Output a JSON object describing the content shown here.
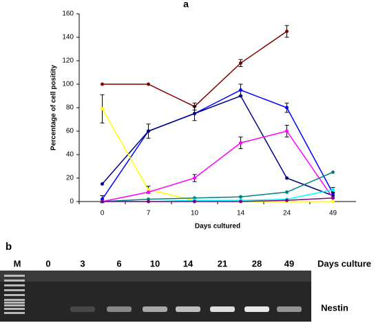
{
  "chart_data": {
    "type": "line",
    "panel_label": "a",
    "ylabel": "Percentage of cell positity",
    "xlabel": "Days cultured",
    "categories": [
      "0",
      "7",
      "10",
      "14",
      "24",
      "49"
    ],
    "ylim": [
      0,
      160
    ],
    "yticks": [
      0,
      20,
      40,
      60,
      80,
      100,
      120,
      140,
      160
    ],
    "grid": false,
    "series": [
      {
        "color": "#800000",
        "values": [
          100,
          100,
          81,
          118,
          145,
          null
        ],
        "errors": [
          null,
          null,
          3,
          3,
          5,
          null
        ]
      },
      {
        "color": "#0000ff",
        "values": [
          2,
          60,
          75,
          95,
          80,
          7
        ],
        "errors": [
          3,
          6,
          6,
          5,
          4,
          null
        ]
      },
      {
        "color": "#000080",
        "values": [
          15,
          60,
          75,
          90,
          20,
          5
        ],
        "errors": [
          null,
          null,
          null,
          null,
          null,
          null
        ]
      },
      {
        "color": "#ffff00",
        "values": [
          79,
          10,
          1,
          0,
          0,
          0
        ],
        "errors": [
          12,
          3,
          null,
          null,
          null,
          null
        ]
      },
      {
        "color": "#ff00ff",
        "values": [
          0,
          8,
          20,
          50,
          60,
          3
        ],
        "errors": [
          null,
          null,
          3,
          5,
          5,
          null
        ]
      },
      {
        "color": "#008080",
        "values": [
          0,
          2,
          3,
          4,
          8,
          25
        ],
        "errors": [
          null,
          null,
          null,
          null,
          null,
          null
        ]
      },
      {
        "color": "#00ffff",
        "values": [
          0,
          0,
          1,
          1,
          2,
          10
        ],
        "errors": [
          null,
          null,
          null,
          null,
          null,
          2
        ]
      },
      {
        "color": "#800080",
        "values": [
          0,
          0,
          0,
          0,
          1,
          3
        ],
        "errors": [
          null,
          null,
          null,
          null,
          null,
          null
        ]
      }
    ]
  },
  "gel": {
    "panel_label": "b",
    "marker_label": "M",
    "lanes": [
      "0",
      "3",
      "6",
      "10",
      "14",
      "21",
      "28",
      "49"
    ],
    "axis_label": "Days culture",
    "band_label": "Nestin"
  }
}
